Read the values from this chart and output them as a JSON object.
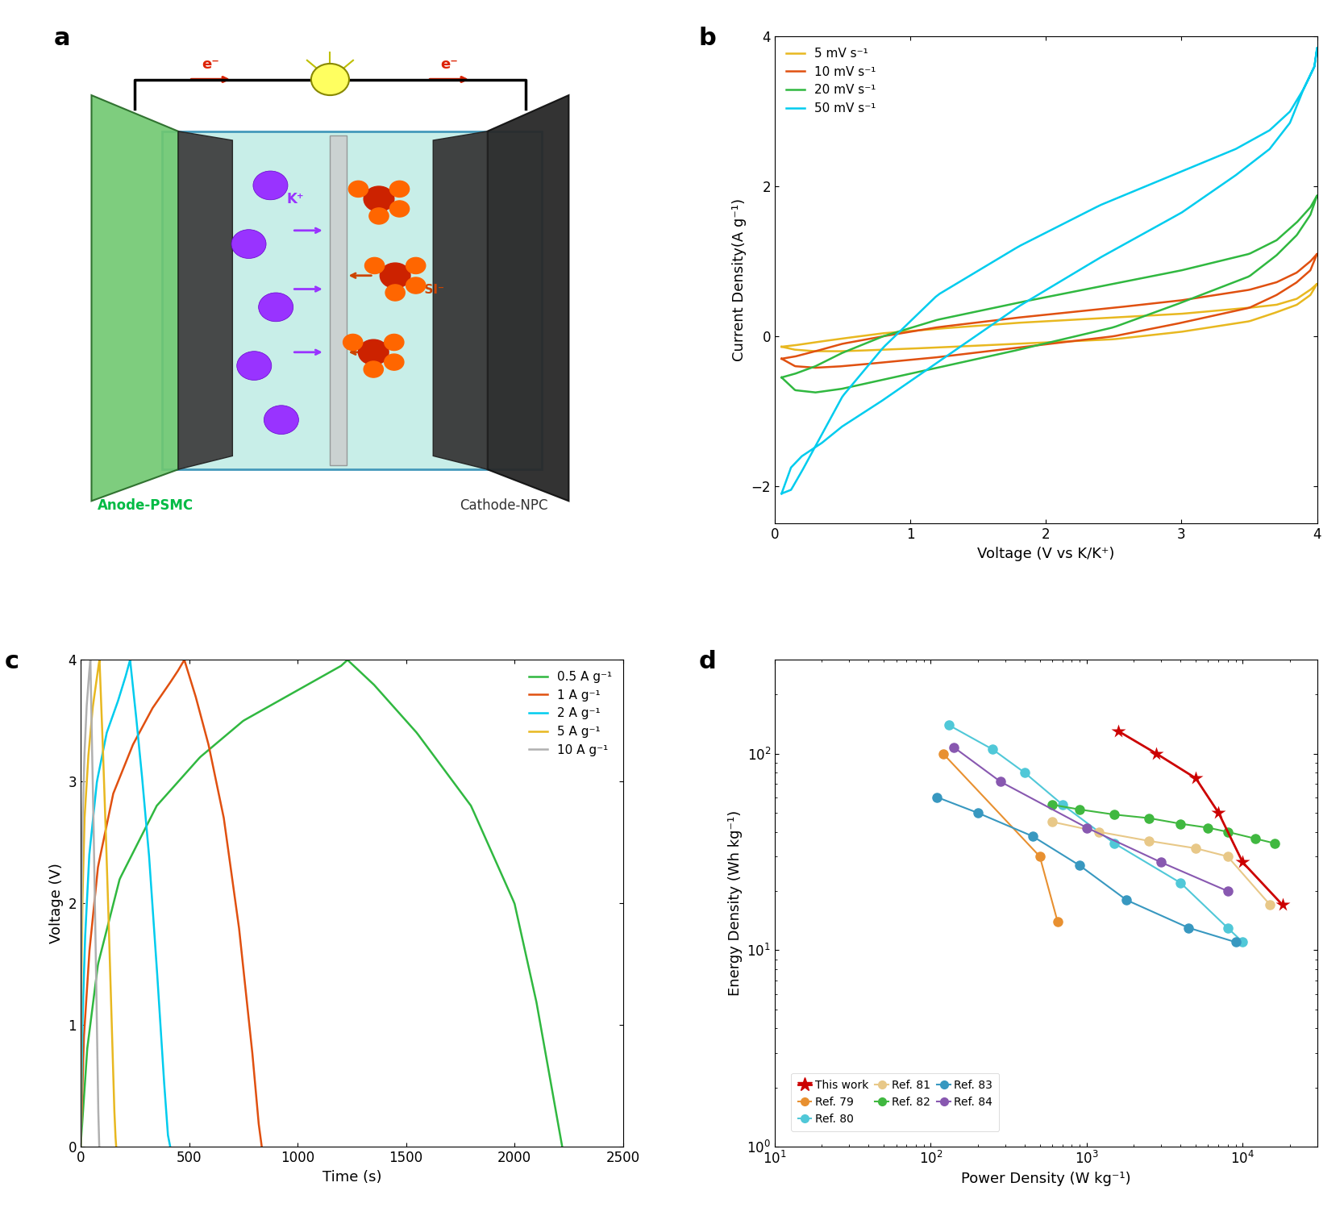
{
  "panel_b": {
    "xlabel": "Voltage (V vs K/K⁺)",
    "ylabel": "Current Density(A g⁻¹)",
    "xlim": [
      0,
      4
    ],
    "ylim": [
      -2.5,
      4
    ],
    "yticks": [
      -2,
      0,
      2,
      4
    ],
    "xticks": [
      0,
      1,
      2,
      3,
      4
    ],
    "curves": [
      {
        "label": "5 mV s⁻¹",
        "color": "#E8B820",
        "pts_x": [
          0.05,
          0.15,
          0.3,
          0.5,
          0.8,
          1.2,
          1.8,
          2.5,
          3.0,
          3.5,
          3.7,
          3.85,
          3.95,
          4.0,
          4.0,
          3.95,
          3.85,
          3.7,
          3.5,
          3.0,
          2.5,
          1.8,
          1.2,
          0.8,
          0.5,
          0.3,
          0.15,
          0.05
        ],
        "pts_y": [
          -0.14,
          -0.12,
          -0.08,
          -0.03,
          0.04,
          0.1,
          0.18,
          0.25,
          0.3,
          0.38,
          0.42,
          0.5,
          0.62,
          0.7,
          0.7,
          0.55,
          0.42,
          0.32,
          0.2,
          0.06,
          -0.04,
          -0.1,
          -0.15,
          -0.18,
          -0.2,
          -0.2,
          -0.18,
          -0.14
        ]
      },
      {
        "label": "10 mV s⁻¹",
        "color": "#E05010",
        "pts_x": [
          0.05,
          0.15,
          0.3,
          0.5,
          0.8,
          1.2,
          1.8,
          2.5,
          3.0,
          3.5,
          3.7,
          3.85,
          3.95,
          4.0,
          4.0,
          3.95,
          3.85,
          3.7,
          3.5,
          3.0,
          2.5,
          1.8,
          1.2,
          0.8,
          0.5,
          0.3,
          0.15,
          0.05
        ],
        "pts_y": [
          -0.3,
          -0.27,
          -0.2,
          -0.1,
          0.0,
          0.12,
          0.25,
          0.38,
          0.48,
          0.62,
          0.72,
          0.85,
          1.0,
          1.1,
          1.1,
          0.88,
          0.72,
          0.55,
          0.38,
          0.18,
          0.0,
          -0.15,
          -0.28,
          -0.35,
          -0.4,
          -0.42,
          -0.4,
          -0.3
        ]
      },
      {
        "label": "20 mV s⁻¹",
        "color": "#30B840",
        "pts_x": [
          0.05,
          0.15,
          0.3,
          0.5,
          0.8,
          1.2,
          1.8,
          2.5,
          3.0,
          3.5,
          3.7,
          3.85,
          3.95,
          4.0,
          4.0,
          3.95,
          3.85,
          3.7,
          3.5,
          3.0,
          2.5,
          1.8,
          1.2,
          0.8,
          0.5,
          0.3,
          0.15,
          0.05
        ],
        "pts_y": [
          -0.55,
          -0.5,
          -0.4,
          -0.22,
          0.0,
          0.22,
          0.45,
          0.7,
          0.88,
          1.1,
          1.28,
          1.52,
          1.72,
          1.88,
          1.88,
          1.62,
          1.35,
          1.08,
          0.8,
          0.45,
          0.12,
          -0.18,
          -0.42,
          -0.58,
          -0.7,
          -0.75,
          -0.72,
          -0.55
        ]
      },
      {
        "label": "50 mV s⁻¹",
        "color": "#00CCEE",
        "pts_x": [
          0.05,
          0.12,
          0.2,
          0.35,
          0.5,
          0.8,
          1.2,
          1.8,
          2.4,
          3.0,
          3.4,
          3.65,
          3.8,
          3.9,
          3.98,
          4.0,
          4.0,
          3.98,
          3.9,
          3.8,
          3.65,
          3.4,
          3.0,
          2.4,
          1.8,
          1.2,
          0.8,
          0.5,
          0.35,
          0.2,
          0.12,
          0.05
        ],
        "pts_y": [
          -2.1,
          -2.05,
          -1.8,
          -1.3,
          -0.8,
          -0.15,
          0.55,
          1.2,
          1.75,
          2.2,
          2.5,
          2.75,
          3.0,
          3.3,
          3.6,
          3.85,
          3.85,
          3.6,
          3.3,
          2.85,
          2.5,
          2.15,
          1.65,
          1.05,
          0.4,
          -0.35,
          -0.85,
          -1.2,
          -1.42,
          -1.6,
          -1.75,
          -2.1
        ]
      }
    ]
  },
  "panel_c": {
    "xlabel": "Time (s)",
    "ylabel": "Voltage (V)",
    "xlim": [
      0,
      2500
    ],
    "ylim": [
      0,
      4
    ],
    "yticks": [
      0,
      1,
      2,
      3,
      4
    ],
    "xticks": [
      0,
      500,
      1000,
      1500,
      2000,
      2500
    ],
    "curves": [
      {
        "label": "0.5 A g⁻¹",
        "color": "#30B840",
        "x": [
          0,
          30,
          80,
          180,
          350,
          550,
          750,
          950,
          1100,
          1200,
          1230,
          1230,
          1350,
          1550,
          1800,
          2000,
          2100,
          2180,
          2220
        ],
        "y": [
          0.0,
          0.8,
          1.5,
          2.2,
          2.8,
          3.2,
          3.5,
          3.7,
          3.85,
          3.95,
          4.0,
          4.0,
          3.8,
          3.4,
          2.8,
          2.0,
          1.2,
          0.4,
          0.0
        ]
      },
      {
        "label": "1 A g⁻¹",
        "color": "#E05010",
        "x": [
          0,
          15,
          40,
          80,
          150,
          240,
          330,
          400,
          445,
          465,
          478,
          478,
          530,
          590,
          660,
          730,
          790,
          820,
          835
        ],
        "y": [
          0.0,
          0.9,
          1.6,
          2.3,
          2.9,
          3.3,
          3.6,
          3.78,
          3.9,
          3.96,
          4.0,
          4.0,
          3.7,
          3.3,
          2.7,
          1.8,
          0.8,
          0.2,
          0.0
        ]
      },
      {
        "label": "2 A g⁻¹",
        "color": "#00CCEE",
        "x": [
          0,
          8,
          20,
          40,
          75,
          120,
          170,
          205,
          220,
          228,
          228,
          252,
          280,
          315,
          350,
          382,
          402,
          413
        ],
        "y": [
          0.0,
          1.0,
          1.7,
          2.4,
          3.0,
          3.4,
          3.65,
          3.85,
          3.95,
          4.0,
          4.0,
          3.6,
          3.1,
          2.4,
          1.5,
          0.6,
          0.1,
          0.0
        ]
      },
      {
        "label": "5 A g⁻¹",
        "color": "#E8B820",
        "x": [
          0,
          3,
          8,
          18,
          35,
          55,
          72,
          82,
          87,
          87,
          98,
          110,
          125,
          140,
          153,
          160,
          164
        ],
        "y": [
          0.0,
          1.2,
          2.0,
          2.7,
          3.2,
          3.6,
          3.82,
          3.95,
          4.0,
          4.0,
          3.5,
          2.9,
          2.1,
          1.2,
          0.4,
          0.1,
          0.0
        ]
      },
      {
        "label": "10 A g⁻¹",
        "color": "#B0B0B0",
        "x": [
          0,
          2,
          4,
          9,
          17,
          27,
          36,
          42,
          45,
          45,
          50,
          57,
          65,
          73,
          80,
          84,
          86
        ],
        "y": [
          0.0,
          1.2,
          2.0,
          2.7,
          3.2,
          3.6,
          3.82,
          3.95,
          4.0,
          4.0,
          3.5,
          2.9,
          2.1,
          1.2,
          0.4,
          0.1,
          0.0
        ]
      }
    ]
  },
  "panel_d": {
    "xlabel": "Power Density (W kg⁻¹)",
    "ylabel": "Energy Density (Wh kg⁻¹)",
    "xlim": [
      10,
      30000
    ],
    "ylim": [
      1,
      300
    ],
    "series": [
      {
        "label": "This work",
        "color": "#CC0000",
        "marker": "*",
        "markersize": 13,
        "linewidth": 2.0,
        "x": [
          1600,
          2800,
          5000,
          7000,
          10000,
          18000
        ],
        "y": [
          130,
          100,
          75,
          50,
          28,
          17
        ]
      },
      {
        "label": "Ref. 79",
        "color": "#E89030",
        "marker": "o",
        "markersize": 8,
        "linewidth": 1.5,
        "x": [
          120,
          500,
          650
        ],
        "y": [
          100,
          30,
          14
        ]
      },
      {
        "label": "Ref. 80",
        "color": "#50C8D8",
        "marker": "o",
        "markersize": 8,
        "linewidth": 1.5,
        "x": [
          130,
          250,
          400,
          700,
          1500,
          4000,
          8000,
          10000
        ],
        "y": [
          140,
          105,
          80,
          55,
          35,
          22,
          13,
          11
        ]
      },
      {
        "label": "Ref. 81",
        "color": "#E8C888",
        "marker": "o",
        "markersize": 8,
        "linewidth": 1.5,
        "x": [
          600,
          1200,
          2500,
          5000,
          8000,
          15000
        ],
        "y": [
          45,
          40,
          36,
          33,
          30,
          17
        ]
      },
      {
        "label": "Ref. 82",
        "color": "#40B840",
        "marker": "o",
        "markersize": 8,
        "linewidth": 1.5,
        "x": [
          600,
          900,
          1500,
          2500,
          4000,
          6000,
          8000,
          12000,
          16000
        ],
        "y": [
          55,
          52,
          49,
          47,
          44,
          42,
          40,
          37,
          35
        ]
      },
      {
        "label": "Ref. 83",
        "color": "#3898C0",
        "marker": "o",
        "markersize": 8,
        "linewidth": 1.5,
        "x": [
          110,
          200,
          450,
          900,
          1800,
          4500,
          9000
        ],
        "y": [
          60,
          50,
          38,
          27,
          18,
          13,
          11
        ]
      },
      {
        "label": "Ref. 84",
        "color": "#8858B0",
        "marker": "o",
        "markersize": 8,
        "linewidth": 1.5,
        "x": [
          140,
          280,
          1000,
          3000,
          8000
        ],
        "y": [
          108,
          72,
          42,
          28,
          20
        ]
      }
    ]
  }
}
